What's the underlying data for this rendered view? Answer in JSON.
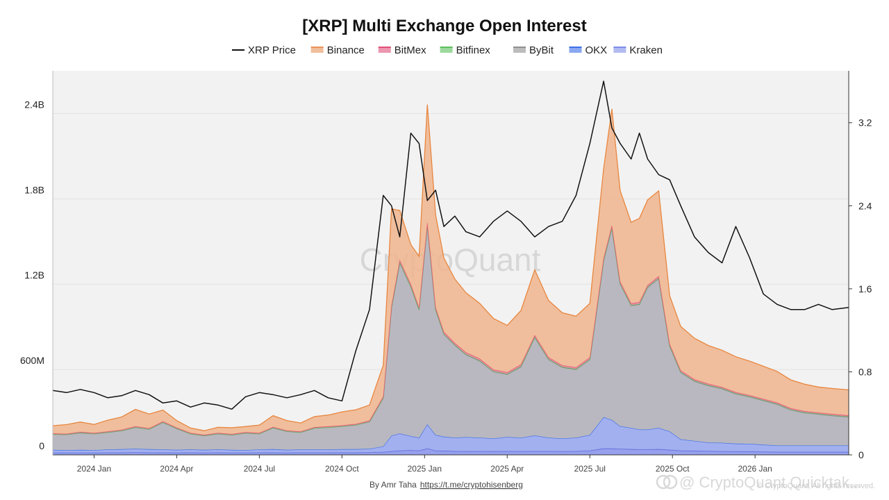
{
  "chart_data": {
    "type": "area",
    "title": "[XRP] Multi Exchange Open Interest",
    "legend": [
      {
        "name": "XRP Price",
        "color": "#111111",
        "kind": "line"
      },
      {
        "name": "Binance",
        "color": "#e8935a",
        "kind": "area"
      },
      {
        "name": "BitMex",
        "color": "#e0507a",
        "kind": "area"
      },
      {
        "name": "Bitfinex",
        "color": "#5cc05c",
        "kind": "area"
      },
      {
        "name": "ByBit",
        "color": "#8f8f8f",
        "kind": "area"
      },
      {
        "name": "OKX",
        "color": "#3c6ee8",
        "kind": "area"
      },
      {
        "name": "Kraken",
        "color": "#7f8de8",
        "kind": "area"
      }
    ],
    "x_ticks": [
      "2024 Jan",
      "2024 Apr",
      "2024 Jul",
      "2024 Oct",
      "2025 Jan",
      "2025 Apr",
      "2025 Jul",
      "2025 Oct",
      "2026 Jan"
    ],
    "x_tick_t": [
      0.5,
      3.5,
      6.5,
      9.5,
      12.5,
      15.5,
      18.5,
      21.5,
      24.5
    ],
    "x_range_months": [
      -1.0,
      27.9
    ],
    "y_left": {
      "min": 0,
      "max": 2700000000,
      "ticks": [
        0,
        600000000,
        1200000000,
        1800000000,
        2400000000
      ],
      "labels": [
        "0",
        "600M",
        "1.2B",
        "1.8B",
        "2.4B"
      ]
    },
    "y_right": {
      "min": 0,
      "max": 3.7,
      "ticks": [
        0,
        0.8,
        1.6,
        2.4,
        3.2
      ],
      "labels": [
        "0",
        "0.8",
        "1.6",
        "2.4",
        "3.2"
      ]
    },
    "t": [
      -1.0,
      -0.5,
      0.0,
      0.5,
      1.0,
      1.5,
      2.0,
      2.5,
      3.0,
      3.5,
      4.0,
      4.5,
      5.0,
      5.5,
      6.0,
      6.5,
      7.0,
      7.5,
      8.0,
      8.5,
      9.0,
      9.5,
      10.0,
      10.5,
      11.0,
      11.3,
      11.6,
      12.0,
      12.3,
      12.6,
      12.9,
      13.2,
      13.6,
      14.0,
      14.5,
      15.0,
      15.5,
      16.0,
      16.5,
      17.0,
      17.5,
      18.0,
      18.5,
      19.0,
      19.3,
      19.6,
      20.0,
      20.3,
      20.6,
      21.0,
      21.4,
      21.8,
      22.3,
      22.8,
      23.3,
      23.8,
      24.3,
      24.8,
      25.3,
      25.8,
      26.3,
      26.8,
      27.3,
      27.9
    ],
    "series": [
      {
        "name": "Kraken",
        "values_m": [
          15,
          15,
          15,
          15,
          16,
          16,
          17,
          16,
          16,
          15,
          16,
          15,
          16,
          15,
          15,
          16,
          16,
          15,
          16,
          16,
          16,
          16,
          16,
          17,
          20,
          25,
          30,
          32,
          30,
          45,
          30,
          28,
          26,
          25,
          26,
          25,
          26,
          25,
          26,
          26,
          25,
          26,
          30,
          45,
          45,
          42,
          40,
          38,
          38,
          40,
          35,
          30,
          28,
          27,
          25,
          24,
          23,
          22,
          21,
          21,
          21,
          21,
          21,
          21
        ]
      },
      {
        "name": "OKX",
        "values_m": [
          20,
          18,
          20,
          18,
          22,
          24,
          26,
          24,
          22,
          20,
          22,
          20,
          22,
          20,
          18,
          22,
          24,
          20,
          22,
          22,
          22,
          24,
          24,
          26,
          40,
          110,
          120,
          100,
          90,
          170,
          110,
          100,
          95,
          100,
          95,
          90,
          100,
          95,
          110,
          95,
          90,
          95,
          110,
          220,
          200,
          160,
          150,
          140,
          140,
          150,
          130,
          80,
          70,
          60,
          60,
          55,
          55,
          50,
          45,
          45,
          45,
          45,
          45,
          45
        ]
      },
      {
        "name": "ByBit",
        "values_m": [
          110,
          110,
          120,
          115,
          120,
          130,
          150,
          140,
          190,
          150,
          110,
          100,
          110,
          105,
          120,
          110,
          150,
          130,
          120,
          150,
          155,
          160,
          170,
          190,
          340,
          900,
          1200,
          1050,
          900,
          1400,
          880,
          720,
          650,
          580,
          540,
          470,
          440,
          500,
          690,
          550,
          500,
          480,
          530,
          1100,
          1350,
          1000,
          860,
          880,
          1000,
          1050,
          600,
          470,
          420,
          400,
          380,
          350,
          330,
          310,
          290,
          250,
          230,
          220,
          210,
          200
        ]
      },
      {
        "name": "Bitfinex",
        "values_m": [
          1,
          1,
          1,
          1,
          1,
          1,
          1,
          1,
          1,
          1,
          1,
          1,
          1,
          1,
          1,
          1,
          1,
          1,
          1,
          1,
          1,
          1,
          1,
          1,
          2,
          2,
          3,
          3,
          3,
          3,
          3,
          3,
          3,
          3,
          3,
          3,
          3,
          3,
          3,
          3,
          3,
          3,
          3,
          3,
          3,
          3,
          3,
          3,
          3,
          3,
          3,
          3,
          3,
          3,
          3,
          3,
          3,
          3,
          3,
          3,
          3,
          3,
          3,
          3
        ]
      },
      {
        "name": "BitMex",
        "values_m": [
          4,
          4,
          5,
          5,
          5,
          5,
          6,
          6,
          6,
          5,
          5,
          4,
          5,
          5,
          5,
          5,
          5,
          5,
          5,
          5,
          6,
          6,
          6,
          6,
          8,
          12,
          15,
          14,
          13,
          15,
          14,
          13,
          12,
          12,
          12,
          11,
          11,
          12,
          12,
          12,
          11,
          11,
          12,
          14,
          14,
          13,
          12,
          12,
          12,
          13,
          11,
          10,
          9,
          9,
          8,
          8,
          8,
          8,
          8,
          8,
          8,
          8,
          8,
          8
        ]
      },
      {
        "name": "Binance",
        "values_m": [
          55,
          65,
          70,
          60,
          80,
          90,
          120,
          100,
          80,
          50,
          35,
          30,
          40,
          45,
          40,
          55,
          80,
          70,
          60,
          75,
          80,
          95,
          100,
          110,
          220,
          680,
          350,
          280,
          360,
          830,
          650,
          520,
          450,
          420,
          390,
          360,
          330,
          380,
          460,
          400,
          370,
          360,
          380,
          630,
          820,
          640,
          570,
          590,
          600,
          600,
          340,
          310,
          290,
          270,
          260,
          250,
          240,
          230,
          220,
          200,
          190,
          180,
          180,
          180
        ]
      },
      {
        "name": "XRP Price",
        "values": [
          0.62,
          0.6,
          0.63,
          0.6,
          0.55,
          0.57,
          0.62,
          0.58,
          0.5,
          0.52,
          0.46,
          0.5,
          0.48,
          0.44,
          0.56,
          0.6,
          0.58,
          0.55,
          0.58,
          0.62,
          0.55,
          0.52,
          1.0,
          1.4,
          2.5,
          2.4,
          2.1,
          3.1,
          3.0,
          2.45,
          2.55,
          2.2,
          2.3,
          2.15,
          2.1,
          2.25,
          2.35,
          2.25,
          2.1,
          2.2,
          2.25,
          2.5,
          3.0,
          3.6,
          3.15,
          3.0,
          2.85,
          3.1,
          2.85,
          2.7,
          2.65,
          2.4,
          2.1,
          1.95,
          1.85,
          2.2,
          1.9,
          1.55,
          1.45,
          1.4,
          1.4,
          1.45,
          1.4,
          1.42
        ]
      }
    ]
  },
  "watermark": "CryptoQuant",
  "footer": {
    "credit_prefix": "By Amr Taha",
    "credit_link": "https://t.me/cryptohisenberg",
    "brand_watermark": "@ CryptoQuant Quicktak...",
    "brand_icon": "cryptoquant-icon",
    "small_watermark": "© CryptoQuant, All rights reserved."
  }
}
